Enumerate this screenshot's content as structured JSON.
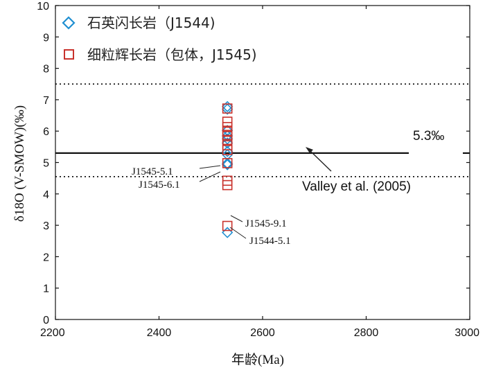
{
  "chart_data": {
    "type": "scatter",
    "xlabel": "年龄(Ma)",
    "ylabel": "δ18O (V-SMOW)(‰)",
    "xlim": [
      2200,
      3000
    ],
    "ylim": [
      0,
      10
    ],
    "x_ticks": [
      2200,
      2400,
      2600,
      2800,
      3000
    ],
    "y_ticks": [
      0,
      1,
      2,
      3,
      4,
      5,
      6,
      7,
      8,
      9,
      10
    ],
    "x_tick_labels": [
      "2200",
      "2400",
      "2600",
      "2800",
      "3000"
    ],
    "y_tick_labels": [
      "0",
      "1",
      "2",
      "3",
      "4",
      "5",
      "6",
      "7",
      "8",
      "9",
      "10"
    ],
    "legend_position": "top-left",
    "series": [
      {
        "name": "石英闪长岩（J1544)",
        "marker": "diamond",
        "color": "#1f8fd1",
        "x": [
          2532,
          2532,
          2532,
          2532,
          2532,
          2532,
          2532,
          2532,
          2532,
          2532,
          2532
        ],
        "y": [
          6.78,
          6.7,
          6.02,
          5.85,
          5.75,
          5.62,
          5.35,
          5.25,
          4.97,
          4.93,
          2.77
        ]
      },
      {
        "name": "细粒辉长岩（包体，J1545)",
        "marker": "square",
        "color": "#c9322c",
        "x": [
          2532,
          2532,
          2532,
          2532,
          2532,
          2532,
          2532,
          2532,
          2532,
          2532,
          2532,
          2532
        ],
        "y": [
          6.72,
          6.3,
          6.13,
          5.98,
          5.88,
          5.72,
          5.55,
          5.4,
          4.98,
          4.42,
          4.28,
          2.98
        ]
      }
    ],
    "reference_lines": [
      {
        "value": 5.3,
        "style": "solid",
        "label": "5.3‰"
      },
      {
        "value": 7.5,
        "style": "dotted"
      },
      {
        "value": 4.55,
        "style": "dotted"
      }
    ],
    "annotations": [
      {
        "text": "J1545-5.1",
        "point_y": 4.42
      },
      {
        "text": "J1545-6.1",
        "point_y": 4.28
      },
      {
        "text": "J1545-9.1",
        "point_y": 2.98
      },
      {
        "text": "J1544-5.1",
        "point_y": 2.77
      },
      {
        "text": "Valley et al. (2005)"
      }
    ]
  }
}
